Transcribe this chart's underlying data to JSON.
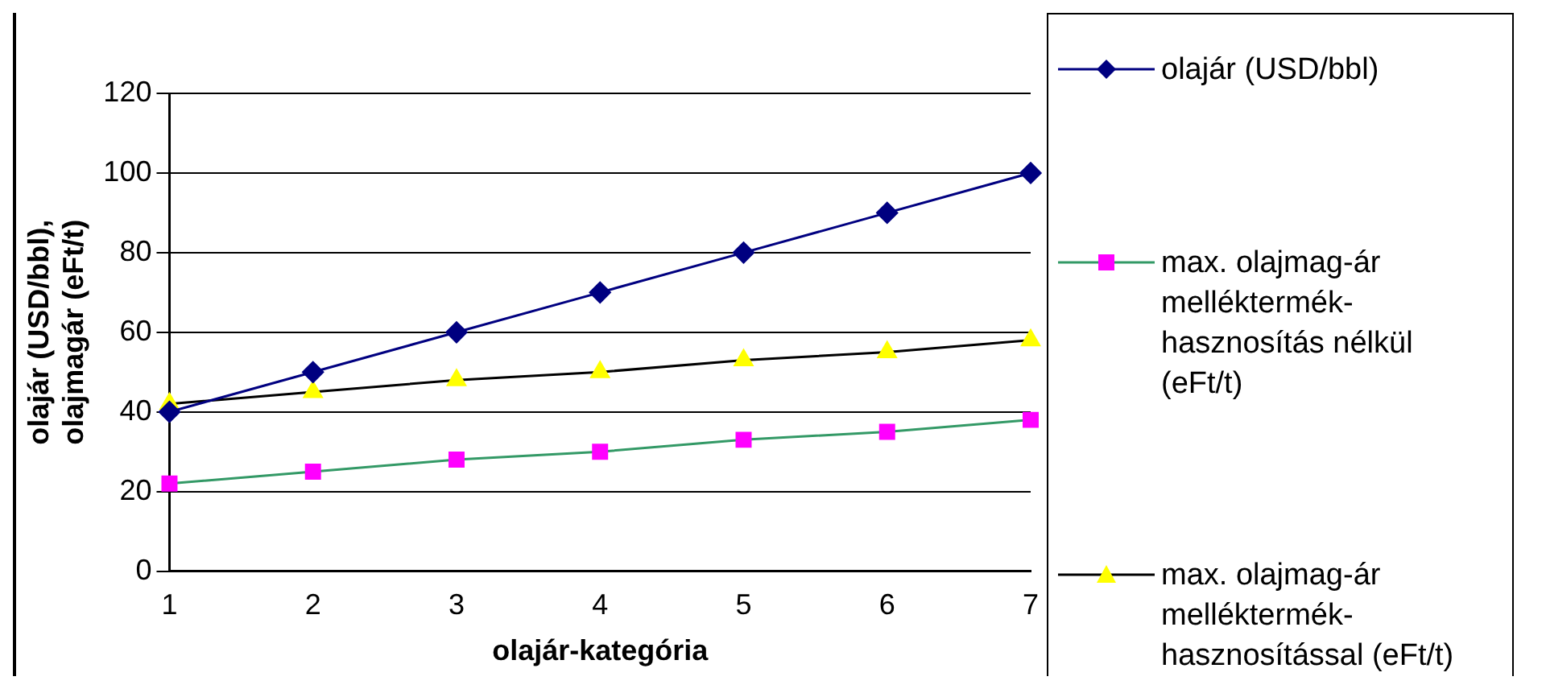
{
  "chart_data": {
    "type": "line",
    "xlabel": "olajár-kategória",
    "ylabel": "olajár (USD/bbl),\nolajmagár (eFt/t)",
    "categories": [
      "1",
      "2",
      "3",
      "4",
      "5",
      "6",
      "7"
    ],
    "ylim": [
      0,
      120
    ],
    "yticks": [
      0,
      20,
      40,
      60,
      80,
      100,
      120
    ],
    "grid": "y",
    "legend": "right",
    "series": [
      {
        "name": "olajár (USD/bbl)",
        "color": "#000080",
        "colors": [
          "#000080",
          "#000080",
          "#000080",
          "#000080",
          "#000080",
          "#000080",
          "#000080"
        ],
        "marker": "diamond",
        "values": [
          40,
          50,
          60,
          70,
          80,
          90,
          100
        ]
      },
      {
        "name": "max. olajmag-ár melléktermék-hasznosítás nélkül (eFt/t)",
        "color": "#339966",
        "colors": [
          "#ff00ff",
          "#ff00ff",
          "#ff00ff",
          "#ff00ff",
          "#ff00ff",
          "#ff00ff",
          "#ff00ff"
        ],
        "marker": "square",
        "values": [
          22,
          25,
          28,
          30,
          33,
          35,
          38
        ]
      },
      {
        "name": "max. olajmag-ár melléktermék-hasznosítással (eFt/t)",
        "color": "#000000",
        "colors": [
          "#ffff00",
          "#ffff00",
          "#ffff00",
          "#ffff00",
          "#ffff00",
          "#ffff00",
          "#ffff00"
        ],
        "marker": "triangle",
        "values": [
          42,
          45,
          48,
          50,
          53,
          55,
          58
        ]
      }
    ]
  }
}
